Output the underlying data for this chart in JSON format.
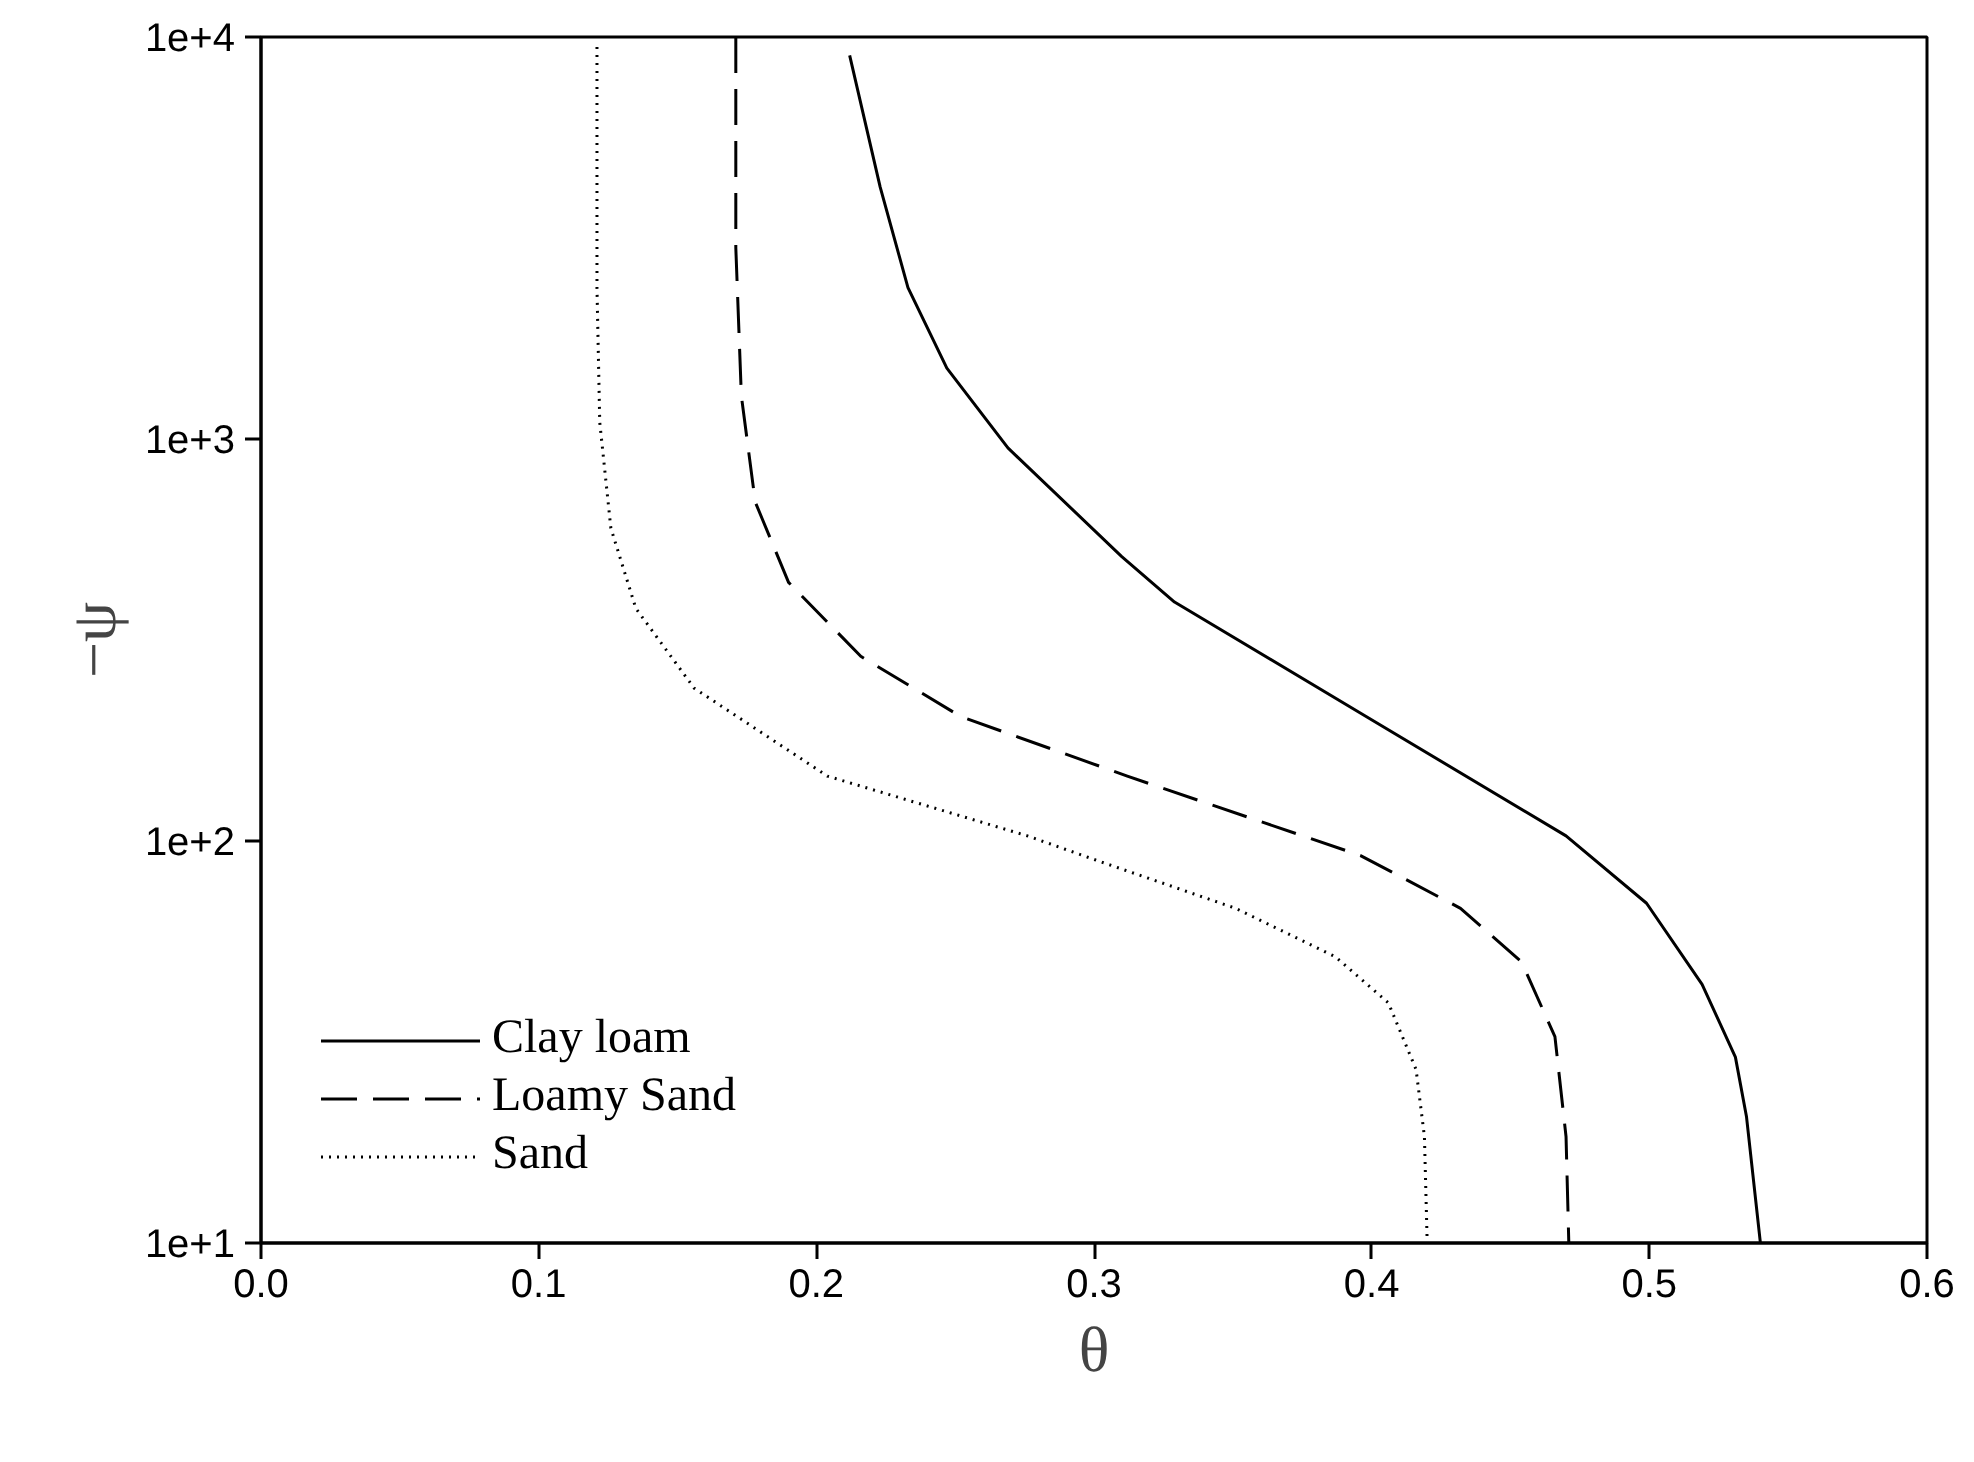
{
  "chart_data": {
    "type": "line",
    "xlabel": "θ",
    "ylabel": "−ψ",
    "log": "y",
    "grid": false,
    "legend": "bottom left",
    "marker": "none",
    "xlim": [
      0.0,
      0.6
    ],
    "xticks": [
      {
        "value": 0.0,
        "label": "0.0"
      },
      0.1,
      0.2,
      0.3,
      0.4,
      0.5,
      0.6
    ],
    "ylim": [
      10,
      10000
    ],
    "yticks": [
      {
        "value": 10,
        "label": "1e+1"
      },
      {
        "value": 100,
        "label": "1e+2"
      },
      {
        "value": 1000,
        "label": "1e+3"
      },
      {
        "value": 10000,
        "label": "1e+4"
      }
    ],
    "series": [
      {
        "name": "Clay loam",
        "color": "#000000",
        "line_style": "solid",
        "x": [
          0.212,
          0.223,
          0.233,
          0.247,
          0.269,
          0.31,
          0.329,
          0.398,
          0.47,
          0.499,
          0.519,
          0.531,
          0.535,
          0.54
        ],
        "values": [
          9000,
          4230,
          2380,
          1500,
          950,
          510,
          393,
          204,
          103,
          70,
          44,
          29,
          20.6,
          10
        ]
      },
      {
        "name": "Loamy Sand",
        "color": "#000000",
        "line_style": "dashed",
        "x": [
          0.171,
          0.171,
          0.173,
          0.178,
          0.19,
          0.216,
          0.252,
          0.312,
          0.396,
          0.432,
          0.454,
          0.466,
          0.47,
          0.471
        ],
        "values": [
          10000,
          2990,
          1280,
          697,
          440,
          288,
          204,
          145,
          92,
          68,
          50,
          32.6,
          18.4,
          10
        ]
      },
      {
        "name": "Sand",
        "color": "#000000",
        "line_style": "dotted",
        "x": [
          0.121,
          0.121,
          0.122,
          0.126,
          0.135,
          0.156,
          0.204,
          0.276,
          0.303,
          0.351,
          0.387,
          0.406,
          0.416,
          0.419,
          0.42
        ],
        "values": [
          9450,
          2380,
          1100,
          600,
          379,
          240,
          145,
          103,
          88.5,
          68,
          51.5,
          39.6,
          27,
          18.4,
          10
        ]
      }
    ]
  }
}
